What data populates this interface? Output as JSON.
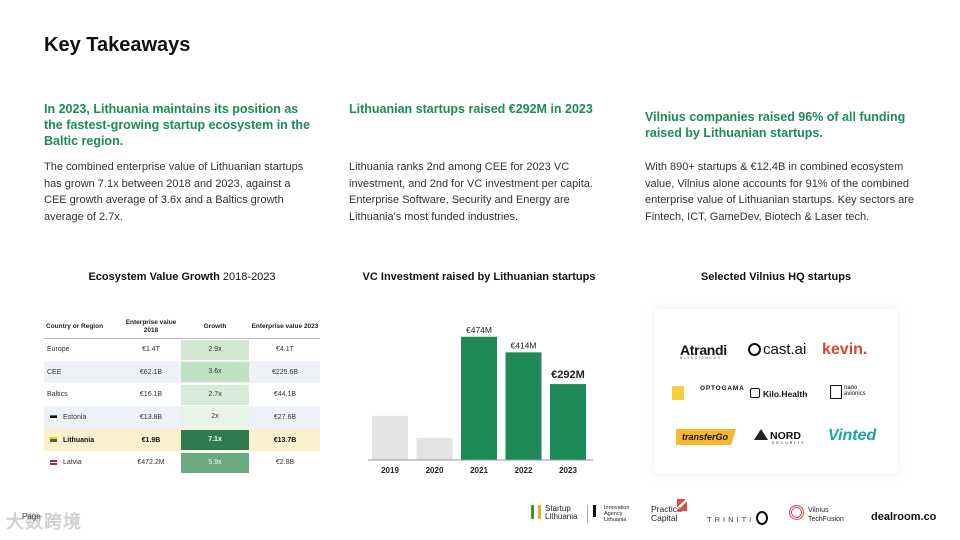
{
  "page_title": "Key Takeaways",
  "takeaways": [
    {
      "heading": "In 2023, Lithuania maintains its position as the fastest-growing startup ecosystem in the Baltic region.",
      "body": "The combined enterprise value of Lithuanian startups has grown 7.1x between 2018 and 2023, against a CEE growth average of 3.6x and a Baltics growth average of 2.7x."
    },
    {
      "heading": "Lithuanian startups raised €292M in 2023",
      "body": "Lithuania ranks 2nd among CEE for 2023 VC investment, and 2nd for VC investment per capita. Enterprise Software, Security and Energy are Lithuania's most funded industries."
    },
    {
      "heading": "Vilnius companies raised 96% of all funding raised by Lithuanian startups.",
      "body": "With 890+ startups & €12.4B in combined ecosystem value, Vilnius alone accounts for 91% of the combined enterprise value of Lithuanian startups. Key sectors are Fintech, ICT, GameDev, Biotech & Laser tech."
    }
  ],
  "table_section": {
    "title_bold": "Ecosystem Value Growth",
    "title_rest": " 2018-2023",
    "headers": [
      "Country or Region",
      "Enterprise value 2018",
      "Growth",
      "Enterprise value 2023"
    ],
    "rows": [
      {
        "name": "Europe",
        "ev2018": "€1.4T",
        "growth": "2.9x",
        "ev2023": "€4.1T",
        "growth_color": "#cfe8cf",
        "highlight": false,
        "alt": false,
        "flag": null
      },
      {
        "name": "CEE",
        "ev2018": "€62.1B",
        "growth": "3.6x",
        "ev2023": "€225.6B",
        "growth_color": "#c0e2c3",
        "highlight": false,
        "alt": true,
        "flag": null
      },
      {
        "name": "Baltics",
        "ev2018": "€16.1B",
        "growth": "2.7x",
        "ev2023": "€44.1B",
        "growth_color": "#d6ecd6",
        "highlight": false,
        "alt": false,
        "flag": null
      },
      {
        "name": "Estonia",
        "ev2018": "€13.8B",
        "growth": "2x",
        "ev2023": "€27.6B",
        "growth_color": "#e8f4e8",
        "highlight": false,
        "alt": true,
        "flag": [
          "#2b6cc4",
          "#111111",
          "#ffffff"
        ]
      },
      {
        "name": "Lithuania",
        "ev2018": "€1.9B",
        "growth": "7.1x",
        "ev2023": "€13.7B",
        "growth_color": "#2f7a4e",
        "highlight": true,
        "alt": false,
        "flag": [
          "#f2c12e",
          "#1e7a3c",
          "#c8312e"
        ]
      },
      {
        "name": "Latvia",
        "ev2018": "€472.2M",
        "growth": "5.9x",
        "ev2023": "€2.8B",
        "growth_color": "#6aaa7e",
        "highlight": false,
        "alt": false,
        "flag": [
          "#9e2a35",
          "#ffffff",
          "#9e2a35"
        ]
      }
    ]
  },
  "chart_section": {
    "title": "VC Investment raised by Lithuanian startups"
  },
  "chart_data": {
    "type": "bar",
    "title": "VC Investment raised by Lithuanian startups",
    "categories": [
      "2019",
      "2020",
      "2021",
      "2022",
      "2023"
    ],
    "values": [
      170,
      85,
      474,
      414,
      292
    ],
    "data_labels": [
      "",
      "",
      "€474M",
      "€414M",
      "€292M"
    ],
    "colors": [
      "#e3e3e3",
      "#e3e3e3",
      "#1e8a55",
      "#1e8a55",
      "#1e8a55"
    ],
    "unit": "€M",
    "ylim": [
      0,
      500
    ],
    "xlabel": "",
    "ylabel": ""
  },
  "logos_section": {
    "title": "Selected Vilnius HQ startups",
    "logos": {
      "atrandi": "Atrandi",
      "atrandi_sub": "BIOSCIENCES",
      "castai": "cast.ai",
      "kevin": "kevin.",
      "optogama": "OPTOGAMA",
      "kilo": "Kilo.Health",
      "nano1": "nano",
      "nano2": "avionics",
      "transfergo": "transferGo",
      "nord": "NORD",
      "nord_sub": "SECURITY",
      "vinted": "Vinted"
    }
  },
  "footer": {
    "page_label": "Page",
    "watermark": "大数跨境",
    "startup1": "Startup",
    "startup2": "Lithuania",
    "innov1": "Innovation",
    "innov2": "Agency",
    "innov3": "Lithuania",
    "practica1": "Practica",
    "practica2": "Capital",
    "triniti": "TRINITI",
    "vilnius1": "Vilnius",
    "vilnius2": "TechFusion",
    "dealroom": "dealroom.co"
  }
}
